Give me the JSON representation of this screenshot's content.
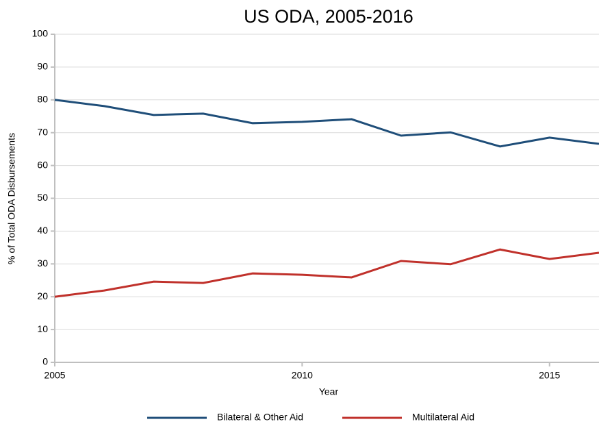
{
  "chart_data": {
    "type": "line",
    "title": "US ODA, 2005-2016",
    "x_label": "Year",
    "y_label": "% of Total ODA Disbursements",
    "x": [
      2005,
      2006,
      2007,
      2008,
      2009,
      2010,
      2011,
      2012,
      2013,
      2014,
      2015,
      2016
    ],
    "series": [
      {
        "name": "Bilateral & Other Aid",
        "color": "#1f4e79",
        "values": [
          80.0,
          78.1,
          75.4,
          75.8,
          72.9,
          73.3,
          74.1,
          69.1,
          70.1,
          65.8,
          68.5,
          66.6
        ]
      },
      {
        "name": "Multilateral Aid",
        "color": "#c0312b",
        "values": [
          20.0,
          21.9,
          24.6,
          24.2,
          27.1,
          26.7,
          25.9,
          30.9,
          29.9,
          34.4,
          31.5,
          33.4
        ]
      }
    ],
    "xlim": [
      2005,
      2016
    ],
    "xticks": [
      2005,
      2010,
      2015
    ],
    "ylim": [
      0,
      100
    ],
    "yticks": [
      0,
      10,
      20,
      30,
      40,
      50,
      60,
      70,
      80,
      90,
      100
    ],
    "grid": true,
    "legend": "bottom"
  }
}
